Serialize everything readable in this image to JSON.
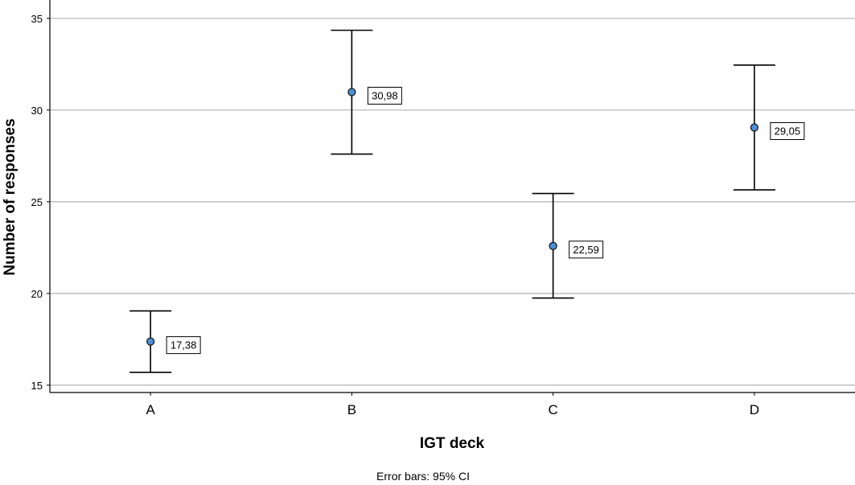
{
  "chart_data": {
    "type": "scatter",
    "title": "",
    "xlabel": "IGT deck",
    "ylabel": "Number of responses",
    "categories": [
      "A",
      "B",
      "C",
      "D"
    ],
    "values": [
      17.38,
      30.98,
      22.59,
      29.05
    ],
    "ci_lower": [
      15.7,
      27.6,
      19.75,
      25.65
    ],
    "ci_upper": [
      19.05,
      34.35,
      25.45,
      32.45
    ],
    "data_labels": [
      "17,38",
      "30,98",
      "22,59",
      "29,05"
    ],
    "ylim": [
      14.6,
      36
    ],
    "yticks": [
      15,
      20,
      25,
      30,
      35
    ],
    "grid": true,
    "legend": "none",
    "footnote": "Error bars: 95% CI",
    "marker_color": "#4a90d9",
    "gridline_color": "#b3b3b3"
  }
}
